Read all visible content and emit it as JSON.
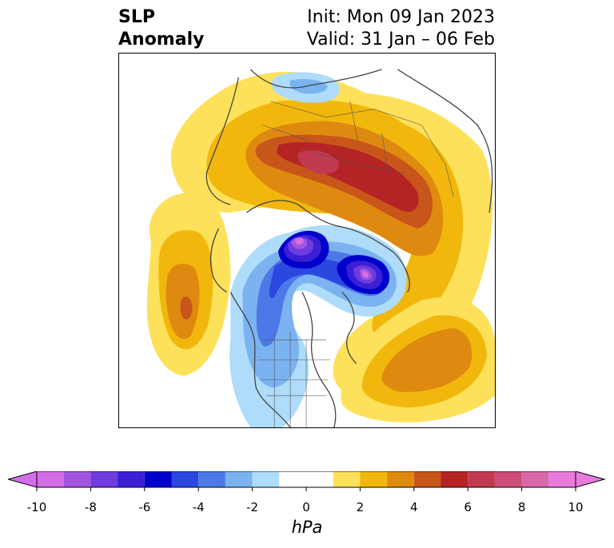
{
  "title": {
    "left_line1": "SLP",
    "left_line2": "Anomaly",
    "init": "Init: Mon 09 Jan 2023",
    "valid": "Valid: 31 Jan – 06 Feb"
  },
  "colorbar": {
    "unit": "hPa",
    "tick_labels": [
      "-10",
      "-8",
      "-6",
      "-4",
      "-2",
      "0",
      "2",
      "4",
      "6",
      "8",
      "10"
    ],
    "bins": [
      {
        "range": [
          -10,
          -9
        ],
        "color": "#d46ee6"
      },
      {
        "range": [
          -9,
          -8
        ],
        "color": "#a455e0"
      },
      {
        "range": [
          -8,
          -7
        ],
        "color": "#6e3cdd"
      },
      {
        "range": [
          -7,
          -6
        ],
        "color": "#3a1fd6"
      },
      {
        "range": [
          -6,
          -5
        ],
        "color": "#0000cc"
      },
      {
        "range": [
          -5,
          -4
        ],
        "color": "#2a48e0"
      },
      {
        "range": [
          -4,
          -3
        ],
        "color": "#4c78e8"
      },
      {
        "range": [
          -3,
          -2
        ],
        "color": "#7bb2f0"
      },
      {
        "range": [
          -2,
          -1
        ],
        "color": "#aedcfa"
      },
      {
        "range": [
          -1,
          1
        ],
        "color": "#ffffff"
      },
      {
        "range": [
          1,
          2
        ],
        "color": "#fde15a"
      },
      {
        "range": [
          2,
          3
        ],
        "color": "#f2b70c"
      },
      {
        "range": [
          3,
          4
        ],
        "color": "#de8a10"
      },
      {
        "range": [
          4,
          5
        ],
        "color": "#c8561a"
      },
      {
        "range": [
          5,
          6
        ],
        "color": "#b42424"
      },
      {
        "range": [
          6,
          7
        ],
        "color": "#c23a50"
      },
      {
        "range": [
          7,
          8
        ],
        "color": "#cc4e78"
      },
      {
        "range": [
          8,
          9
        ],
        "color": "#d868a8"
      },
      {
        "range": [
          9,
          10
        ],
        "color": "#e87ada"
      }
    ],
    "extend_min_color": "#d46ee6",
    "extend_max_color": "#e87ada"
  }
}
